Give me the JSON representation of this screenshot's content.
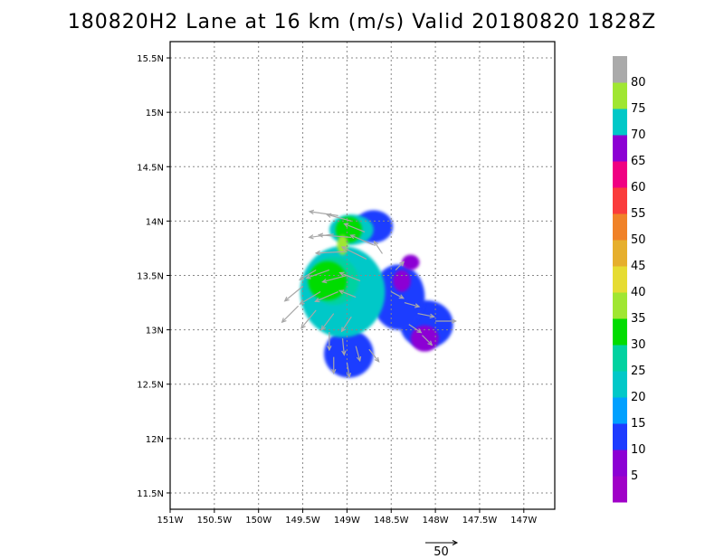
{
  "title": "180820H2 Lane at 16 km (m/s) Valid 20180820 1828Z",
  "map": {
    "lon_range": [
      -151.0,
      -146.65
    ],
    "lat_range": [
      11.35,
      15.65
    ],
    "lon_ticks": [
      {
        "value": -151.0,
        "label": "151W"
      },
      {
        "value": -150.5,
        "label": "150.5W"
      },
      {
        "value": -150.0,
        "label": "150W"
      },
      {
        "value": -149.5,
        "label": "149.5W"
      },
      {
        "value": -149.0,
        "label": "149W"
      },
      {
        "value": -148.5,
        "label": "148.5W"
      },
      {
        "value": -148.0,
        "label": "148W"
      },
      {
        "value": -147.5,
        "label": "147.5W"
      },
      {
        "value": -147.0,
        "label": "147W"
      }
    ],
    "lat_ticks": [
      {
        "value": 11.5,
        "label": "11.5N"
      },
      {
        "value": 12.0,
        "label": "12N"
      },
      {
        "value": 12.5,
        "label": "12.5N"
      },
      {
        "value": 13.0,
        "label": "13N"
      },
      {
        "value": 13.5,
        "label": "13.5N"
      },
      {
        "value": 14.0,
        "label": "14N"
      },
      {
        "value": 14.5,
        "label": "14.5N"
      },
      {
        "value": 15.0,
        "label": "15N"
      },
      {
        "value": 15.5,
        "label": "15.5N"
      }
    ],
    "grid": "dotted",
    "wind_blobs": [
      {
        "color": "#1e3cff",
        "lon": -148.1,
        "lat": 13.05,
        "rlon": 0.3,
        "rlat": 0.22
      },
      {
        "color": "#1e3cff",
        "lon": -148.42,
        "lat": 13.3,
        "rlon": 0.3,
        "rlat": 0.3
      },
      {
        "color": "#1e3cff",
        "lon": -148.98,
        "lat": 12.78,
        "rlon": 0.28,
        "rlat": 0.22
      },
      {
        "color": "#1e3cff",
        "lon": -148.7,
        "lat": 13.95,
        "rlon": 0.22,
        "rlat": 0.15
      },
      {
        "color": "#8c00d4",
        "lon": -148.12,
        "lat": 12.92,
        "rlon": 0.16,
        "rlat": 0.12
      },
      {
        "color": "#8c00d4",
        "lon": -148.38,
        "lat": 13.45,
        "rlon": 0.1,
        "rlat": 0.1
      },
      {
        "color": "#8c00d4",
        "lon": -148.28,
        "lat": 13.62,
        "rlon": 0.1,
        "rlat": 0.07
      },
      {
        "color": "#00c8c8",
        "lon": -149.05,
        "lat": 13.35,
        "rlon": 0.48,
        "rlat": 0.42
      },
      {
        "color": "#00c8c8",
        "lon": -148.95,
        "lat": 13.92,
        "rlon": 0.25,
        "rlat": 0.14
      },
      {
        "color": "#00d2a0",
        "lon": -149.15,
        "lat": 13.45,
        "rlon": 0.28,
        "rlat": 0.22
      },
      {
        "color": "#00dc00",
        "lon": -149.22,
        "lat": 13.45,
        "rlon": 0.22,
        "rlat": 0.18
      },
      {
        "color": "#00dc00",
        "lon": -148.98,
        "lat": 13.92,
        "rlon": 0.15,
        "rlat": 0.12
      },
      {
        "color": "#a0e632",
        "lon": -149.05,
        "lat": 13.78,
        "rlon": 0.06,
        "rlat": 0.09
      }
    ],
    "wind_vectors": [
      {
        "lon": -149.1,
        "lat": 14.05,
        "u": -35,
        "v": 5
      },
      {
        "lon": -148.95,
        "lat": 14.0,
        "u": -30,
        "v": 8
      },
      {
        "lon": -148.8,
        "lat": 13.9,
        "u": -25,
        "v": 10
      },
      {
        "lon": -149.15,
        "lat": 13.88,
        "u": -30,
        "v": -4
      },
      {
        "lon": -148.95,
        "lat": 13.85,
        "u": -40,
        "v": 3
      },
      {
        "lon": -148.7,
        "lat": 13.78,
        "u": -28,
        "v": 12
      },
      {
        "lon": -149.0,
        "lat": 13.72,
        "u": -38,
        "v": -2
      },
      {
        "lon": -148.78,
        "lat": 13.65,
        "u": -30,
        "v": 15
      },
      {
        "lon": -149.35,
        "lat": 13.55,
        "u": -20,
        "v": -12
      },
      {
        "lon": -149.2,
        "lat": 13.55,
        "u": -28,
        "v": -10
      },
      {
        "lon": -149.0,
        "lat": 13.5,
        "u": -30,
        "v": -8
      },
      {
        "lon": -148.85,
        "lat": 13.45,
        "u": -25,
        "v": 10
      },
      {
        "lon": -149.5,
        "lat": 13.4,
        "u": -22,
        "v": -18
      },
      {
        "lon": -149.3,
        "lat": 13.35,
        "u": -25,
        "v": -15
      },
      {
        "lon": -149.1,
        "lat": 13.35,
        "u": -28,
        "v": -12
      },
      {
        "lon": -148.9,
        "lat": 13.3,
        "u": -20,
        "v": 8
      },
      {
        "lon": -149.55,
        "lat": 13.22,
        "u": -20,
        "v": -20
      },
      {
        "lon": -149.35,
        "lat": 13.18,
        "u": -18,
        "v": -22
      },
      {
        "lon": -149.15,
        "lat": 13.15,
        "u": -15,
        "v": -20
      },
      {
        "lon": -148.95,
        "lat": 13.12,
        "u": -12,
        "v": -18
      },
      {
        "lon": -149.2,
        "lat": 12.98,
        "u": 0,
        "v": -22
      },
      {
        "lon": -149.05,
        "lat": 12.92,
        "u": 2,
        "v": -20
      },
      {
        "lon": -148.9,
        "lat": 12.85,
        "u": 5,
        "v": -18
      },
      {
        "lon": -149.15,
        "lat": 12.75,
        "u": 0,
        "v": -20
      },
      {
        "lon": -149.0,
        "lat": 12.7,
        "u": 3,
        "v": -18
      },
      {
        "lon": -148.75,
        "lat": 12.82,
        "u": 12,
        "v": -15
      },
      {
        "lon": -148.5,
        "lat": 13.35,
        "u": 15,
        "v": -8
      },
      {
        "lon": -148.35,
        "lat": 13.25,
        "u": 18,
        "v": -5
      },
      {
        "lon": -148.2,
        "lat": 13.15,
        "u": 20,
        "v": -4
      },
      {
        "lon": -148.3,
        "lat": 13.05,
        "u": 15,
        "v": -10
      },
      {
        "lon": -148.15,
        "lat": 12.95,
        "u": 12,
        "v": -12
      },
      {
        "lon": -148.0,
        "lat": 13.08,
        "u": 25,
        "v": 0
      },
      {
        "lon": -148.45,
        "lat": 13.55,
        "u": 10,
        "v": 10
      },
      {
        "lon": -148.6,
        "lat": 13.7,
        "u": -10,
        "v": 15
      }
    ]
  },
  "colorbar": {
    "colors": [
      "#a000c8",
      "#8c00d4",
      "#1e3cff",
      "#00a0ff",
      "#00c8c8",
      "#00d2a0",
      "#00dc00",
      "#a0e632",
      "#e6dc32",
      "#e6af2d",
      "#f08228",
      "#fa3c3c",
      "#f00082",
      "#8c00d4",
      "#00c8c8",
      "#a0e632",
      "#aaaaaa"
    ],
    "labels": [
      "5",
      "10",
      "15",
      "20",
      "25",
      "30",
      "35",
      "40",
      "45",
      "50",
      "55",
      "60",
      "65",
      "70",
      "75",
      "80"
    ]
  },
  "reference_vector": {
    "label": "50",
    "magnitude": 50
  }
}
